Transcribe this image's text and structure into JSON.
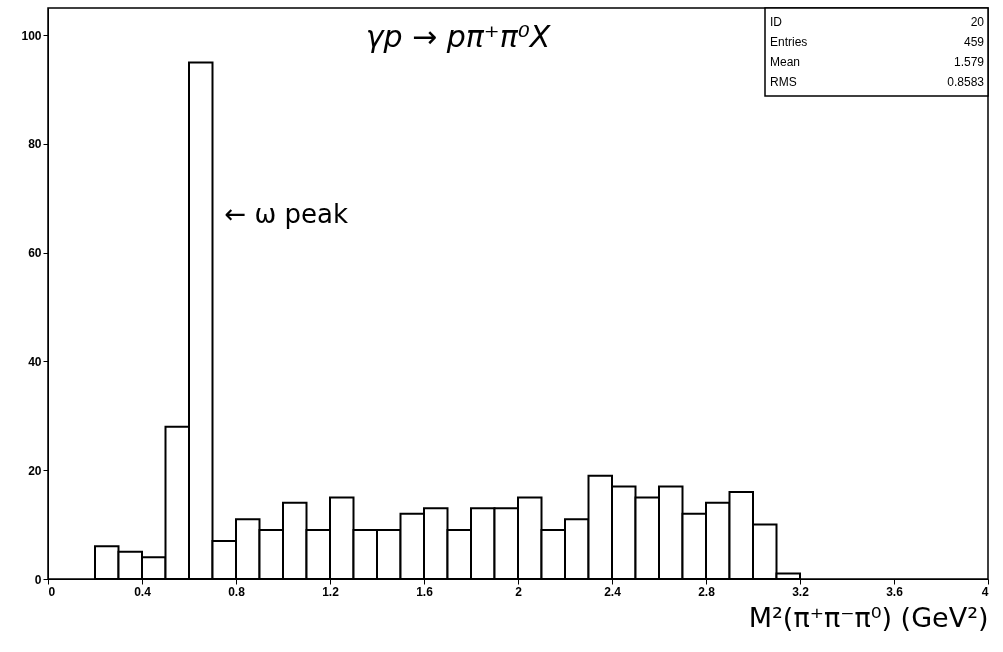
{
  "chart_data": {
    "type": "histogram",
    "title": "γp → pπ⁺π⁰X",
    "xlabel": "M²(π⁺π⁻π⁰)   (GeV²)",
    "bins": [
      0.2,
      0.3,
      0.4,
      0.5,
      0.6,
      0.7,
      0.8,
      0.9,
      1.0,
      1.1,
      1.2,
      1.3,
      1.4,
      1.5,
      1.6,
      1.7,
      1.8,
      1.9,
      2.0,
      2.1,
      2.2,
      2.3,
      2.4,
      2.5,
      2.6,
      2.7,
      2.8,
      2.9,
      3.0,
      3.1,
      3.2
    ],
    "values": [
      6,
      5,
      4,
      28,
      95,
      7,
      11,
      9,
      14,
      9,
      15,
      9,
      9,
      12,
      13,
      9,
      13,
      13,
      15,
      9,
      11,
      19,
      17,
      15,
      17,
      12,
      14,
      16,
      10,
      1
    ],
    "xlim": [
      0,
      4
    ],
    "xticks": [
      0,
      0.4,
      0.8,
      1.2,
      1.6,
      2,
      2.4,
      2.8,
      3.2,
      3.6,
      4
    ],
    "ylim": [
      0,
      105
    ],
    "yticks": [
      0,
      20,
      40,
      60,
      80,
      100
    ],
    "annotations": [
      {
        "text": "← ω peak",
        "x": 0.7,
        "y": 67
      },
      "ID 20",
      "Entries 459",
      "Mean 1.579",
      "RMS 0.8583"
    ]
  }
}
